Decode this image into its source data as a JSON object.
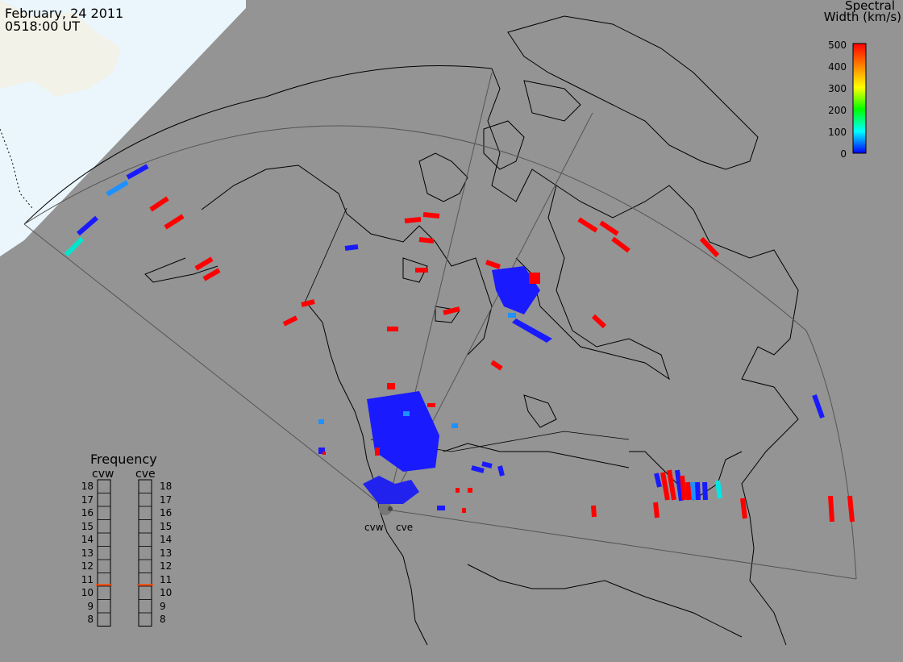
{
  "header": {
    "date": "February, 24 2011",
    "time": "0518:00 UT"
  },
  "colorbar": {
    "title_line1": "Spectral",
    "title_line2": "Width (km/s)",
    "ticks": [
      "500",
      "400",
      "300",
      "200",
      "100",
      "0"
    ],
    "colors": [
      "#ff0000",
      "#ff8000",
      "#ffff00",
      "#00ff00",
      "#00ffff",
      "#0000ff"
    ]
  },
  "frequency_panel": {
    "title": "Frequency",
    "radars": [
      {
        "name": "cvw",
        "value_mhz": 10.6
      },
      {
        "name": "cve",
        "value_mhz": 10.6
      }
    ],
    "scale": [
      "18",
      "17",
      "16",
      "15",
      "14",
      "13",
      "12",
      "11",
      "10",
      "9",
      "8"
    ],
    "marker_color": "#ff4500"
  },
  "radar_labels": [
    "cvw",
    "cve"
  ],
  "map_colors": {
    "background": "#949494",
    "day_side": "#eaf6fc",
    "coastline": "#000000",
    "fov_outline": "#555555"
  }
}
